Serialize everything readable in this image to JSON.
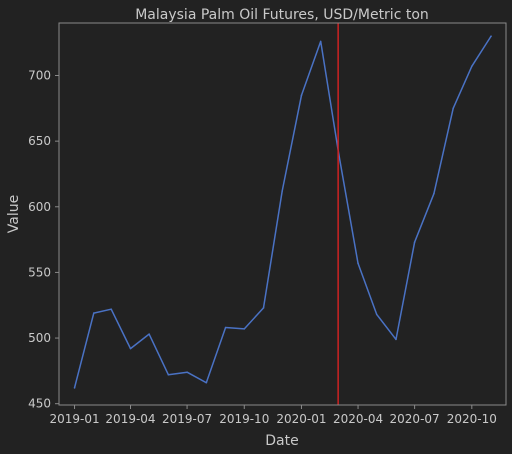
{
  "chart_data": {
    "type": "line",
    "title": "Malaysia Palm Oil Futures, USD/Metric ton",
    "xlabel": "Date",
    "ylabel": "Value",
    "x": [
      "2019-01",
      "2019-02",
      "2019-03",
      "2019-04",
      "2019-05",
      "2019-06",
      "2019-07",
      "2019-08",
      "2019-09",
      "2019-10",
      "2019-11",
      "2019-12",
      "2020-01",
      "2020-02",
      "2020-03",
      "2020-04",
      "2020-05",
      "2020-06",
      "2020-07",
      "2020-08",
      "2020-09",
      "2020-10",
      "2020-11"
    ],
    "series": [
      {
        "values": [
          462,
          519,
          522,
          492,
          503,
          472,
          474,
          466,
          508,
          507,
          523,
          612,
          685,
          726,
          640,
          557,
          518,
          499,
          573,
          610,
          675,
          707,
          730
        ],
        "color": "#4a72c4"
      }
    ],
    "xticks": [
      "2019-01",
      "2019-04",
      "2019-07",
      "2019-10",
      "2020-01",
      "2020-04",
      "2020-07",
      "2020-10"
    ],
    "yticks": [
      450,
      500,
      550,
      600,
      650,
      700
    ],
    "ylim": [
      449,
      740
    ],
    "xlim": [
      "2018-12-07",
      "2020-11-25"
    ],
    "vline": {
      "x": "2020-02-29",
      "color": "#cc2222"
    },
    "grid": false,
    "background": "#222222",
    "axes_border": "#8a8a8a"
  }
}
